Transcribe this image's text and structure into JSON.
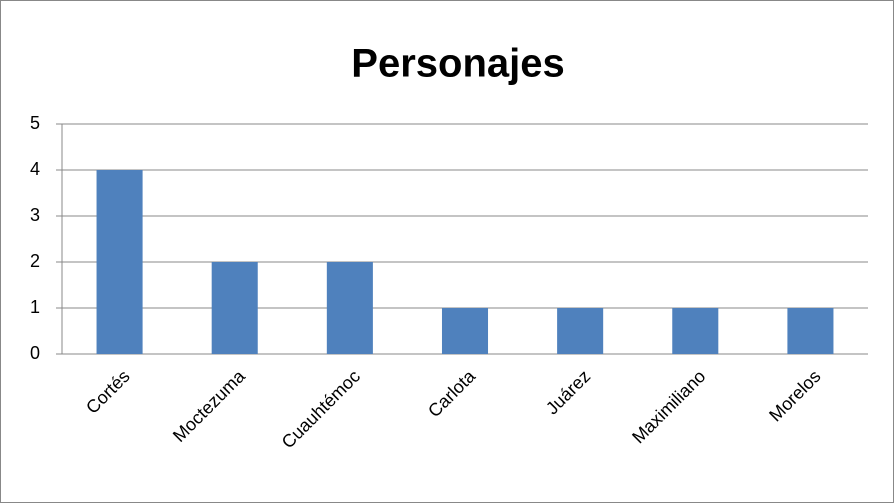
{
  "chart_data": {
    "type": "bar",
    "title": "Personajes",
    "categories": [
      "Cortés",
      "Moctezuma",
      "Cuauhtémoc",
      "Carlota",
      "Juárez",
      "Maximiliano",
      "Morelos"
    ],
    "values": [
      4,
      2,
      2,
      1,
      1,
      1,
      1
    ],
    "color": "#4f81bd",
    "ylim": [
      0,
      5
    ],
    "yticks": [
      0,
      1,
      2,
      3,
      4,
      5
    ],
    "grid": true
  }
}
